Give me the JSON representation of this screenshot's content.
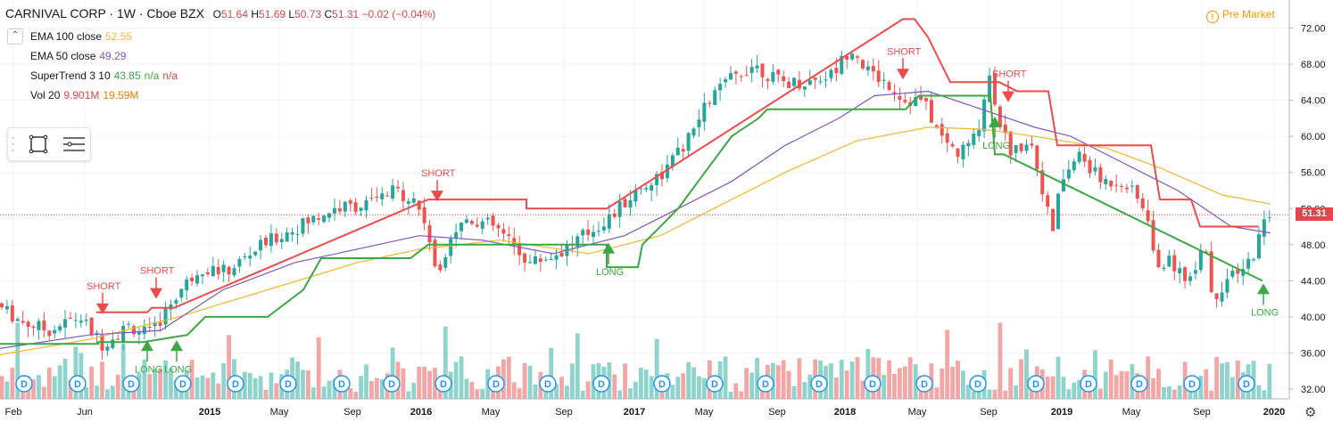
{
  "header": {
    "symbol": "CARNIVAL CORP · 1W · Cboe BZX",
    "open_label": "O",
    "open": "51.64",
    "high_label": "H",
    "high": "51.69",
    "low_label": "L",
    "low": "50.73",
    "close_label": "C",
    "close": "51.31",
    "change": "−0.02 (−0.04%)"
  },
  "indicators": [
    {
      "name": "EMA 100 close",
      "values": [
        "52.55"
      ],
      "colors": [
        "#f5b731"
      ]
    },
    {
      "name": "EMA 50 close",
      "values": [
        "49.29"
      ],
      "colors": [
        "#7b57c9"
      ]
    },
    {
      "name": "SuperTrend 3 10",
      "values": [
        "43.85",
        "n/a",
        "n/a"
      ],
      "colors": [
        "#3aa843",
        "#3aa843",
        "#e0474c"
      ]
    },
    {
      "name": "Vol 20",
      "values": [
        "9.901M",
        "19.59M"
      ],
      "colors": [
        "#e0474c",
        "#f57c00"
      ]
    }
  ],
  "premarket": {
    "label": "Pre Market",
    "icon": "clock-icon"
  },
  "last_price": "51.31",
  "colors": {
    "up": "#26a69a",
    "down": "#ef5350",
    "ema100": "#f5b731",
    "ema50": "#7b57c9",
    "st_up": "#3aa843",
    "st_down": "#f04a4a",
    "vol_up": "#8fd4cc",
    "vol_down": "#f4a6a6"
  },
  "chart_data": {
    "type": "candlestick",
    "y_ticks": [
      "72.00",
      "68.00",
      "64.00",
      "60.00",
      "56.00",
      "52.00",
      "48.00",
      "44.00",
      "40.00",
      "36.00",
      "32.00"
    ],
    "ylim": [
      32,
      73
    ],
    "x_ticks": [
      "Feb",
      "Jun",
      "2015",
      "May",
      "Sep",
      "2016",
      "May",
      "Sep",
      "2017",
      "May",
      "Sep",
      "2018",
      "May",
      "Sep",
      "2019",
      "May",
      "Sep",
      "2020"
    ],
    "price_path": [
      [
        0,
        41.5
      ],
      [
        30,
        39.5
      ],
      [
        60,
        38.5
      ],
      [
        95,
        40
      ],
      [
        120,
        37
      ],
      [
        150,
        39
      ],
      [
        175,
        38
      ],
      [
        200,
        42
      ],
      [
        230,
        45.5
      ],
      [
        260,
        45
      ],
      [
        300,
        48
      ],
      [
        340,
        50
      ],
      [
        380,
        52
      ],
      [
        420,
        52.5
      ],
      [
        450,
        54
      ],
      [
        470,
        53
      ],
      [
        485,
        50
      ],
      [
        495,
        44
      ],
      [
        510,
        49
      ],
      [
        530,
        51
      ],
      [
        560,
        50
      ],
      [
        580,
        48
      ],
      [
        600,
        46
      ],
      [
        630,
        47
      ],
      [
        660,
        49
      ],
      [
        690,
        51
      ],
      [
        720,
        54
      ],
      [
        750,
        56
      ],
      [
        780,
        60
      ],
      [
        800,
        64
      ],
      [
        820,
        66
      ],
      [
        850,
        68
      ],
      [
        880,
        66
      ],
      [
        910,
        66
      ],
      [
        940,
        67
      ],
      [
        960,
        70
      ],
      [
        980,
        67
      ],
      [
        1000,
        66
      ],
      [
        1020,
        64
      ],
      [
        1040,
        64
      ],
      [
        1060,
        60
      ],
      [
        1080,
        58
      ],
      [
        1100,
        60
      ],
      [
        1115,
        67
      ],
      [
        1125,
        62
      ],
      [
        1140,
        58
      ],
      [
        1160,
        60
      ],
      [
        1175,
        54
      ],
      [
        1185,
        49
      ],
      [
        1195,
        55
      ],
      [
        1215,
        58
      ],
      [
        1240,
        55
      ],
      [
        1265,
        55
      ],
      [
        1290,
        52
      ],
      [
        1300,
        46
      ],
      [
        1320,
        46
      ],
      [
        1340,
        44
      ],
      [
        1355,
        49
      ],
      [
        1365,
        42
      ],
      [
        1380,
        44
      ],
      [
        1400,
        45
      ],
      [
        1415,
        48
      ],
      [
        1424,
        51.3
      ]
    ],
    "ema100": [
      [
        0,
        35.8
      ],
      [
        100,
        37.5
      ],
      [
        200,
        40
      ],
      [
        300,
        43
      ],
      [
        400,
        46
      ],
      [
        470,
        47.5
      ],
      [
        560,
        48.5
      ],
      [
        660,
        47
      ],
      [
        740,
        49
      ],
      [
        800,
        52
      ],
      [
        880,
        56
      ],
      [
        960,
        59.5
      ],
      [
        1040,
        61
      ],
      [
        1100,
        60.8
      ],
      [
        1160,
        60
      ],
      [
        1240,
        58.7
      ],
      [
        1300,
        56.5
      ],
      [
        1370,
        53.5
      ],
      [
        1424,
        52.5
      ]
    ],
    "ema50": [
      [
        0,
        36.5
      ],
      [
        100,
        38
      ],
      [
        180,
        38.5
      ],
      [
        250,
        43
      ],
      [
        330,
        46
      ],
      [
        400,
        47.5
      ],
      [
        470,
        49
      ],
      [
        540,
        48.5
      ],
      [
        620,
        47
      ],
      [
        700,
        49
      ],
      [
        760,
        52
      ],
      [
        820,
        55
      ],
      [
        880,
        59
      ],
      [
        940,
        62
      ],
      [
        980,
        64.5
      ],
      [
        1040,
        65
      ],
      [
        1100,
        63
      ],
      [
        1160,
        61
      ],
      [
        1200,
        60
      ],
      [
        1260,
        57
      ],
      [
        1320,
        54
      ],
      [
        1380,
        50
      ],
      [
        1424,
        49.3
      ]
    ],
    "supertrend_down": [
      [
        108,
        40.5
      ],
      [
        165,
        40.5
      ],
      [
        170,
        41
      ],
      [
        195,
        41
      ],
      [
        480,
        53
      ],
      [
        590,
        53
      ],
      [
        590,
        52
      ],
      [
        680,
        52
      ],
      [
        1012,
        73
      ],
      [
        1025,
        73
      ],
      [
        1040,
        71
      ],
      [
        1065,
        66
      ],
      [
        1120,
        66
      ],
      [
        1140,
        65
      ],
      [
        1175,
        65
      ],
      [
        1185,
        59
      ],
      [
        1290,
        59
      ],
      [
        1300,
        53
      ],
      [
        1335,
        53
      ],
      [
        1345,
        50
      ],
      [
        1410,
        50
      ]
    ],
    "supertrend_up": [
      [
        0,
        37
      ],
      [
        110,
        37
      ],
      [
        110,
        37.2
      ],
      [
        160,
        37.2
      ],
      [
        210,
        38
      ],
      [
        230,
        40
      ],
      [
        300,
        40
      ],
      [
        340,
        43
      ],
      [
        360,
        46.5
      ],
      [
        460,
        46.5
      ],
      [
        480,
        48
      ],
      [
        495,
        48
      ],
      [
        500,
        48
      ],
      [
        680,
        48
      ],
      [
        680,
        45.5
      ],
      [
        715,
        45.5
      ],
      [
        720,
        48
      ],
      [
        760,
        52
      ],
      [
        790,
        56
      ],
      [
        820,
        60
      ],
      [
        850,
        62
      ],
      [
        860,
        63
      ],
      [
        1015,
        63
      ],
      [
        1030,
        64.5
      ],
      [
        1110,
        64.5
      ],
      [
        1115,
        58
      ],
      [
        1125,
        58
      ],
      [
        1415,
        44
      ]
    ],
    "signals": [
      {
        "label": "SHORT",
        "x": 115,
        "y": 40.5,
        "side": "short"
      },
      {
        "label": "SHORT",
        "x": 175,
        "y": 42.2,
        "side": "short"
      },
      {
        "label": "LONG",
        "x": 165,
        "y": 37.2,
        "side": "long"
      },
      {
        "label": "LONG",
        "x": 198,
        "y": 37.2,
        "side": "long"
      },
      {
        "label": "SHORT",
        "x": 490,
        "y": 53,
        "side": "short"
      },
      {
        "label": "LONG",
        "x": 682,
        "y": 48,
        "side": "long"
      },
      {
        "label": "SHORT",
        "x": 1012,
        "y": 66.5,
        "side": "short"
      },
      {
        "label": "LONG",
        "x": 1115,
        "y": 62,
        "side": "long"
      },
      {
        "label": "SHORT",
        "x": 1130,
        "y": 64,
        "side": "short"
      },
      {
        "label": "LONG",
        "x": 1416,
        "y": 43.5,
        "side": "long"
      }
    ],
    "dividend_marker": "D",
    "dividend_x": [
      27,
      87,
      147,
      205,
      264,
      323,
      383,
      439,
      497,
      556,
      614,
      674,
      742,
      801,
      858,
      918,
      978,
      1036,
      1096,
      1161,
      1220,
      1277,
      1336,
      1397
    ]
  }
}
